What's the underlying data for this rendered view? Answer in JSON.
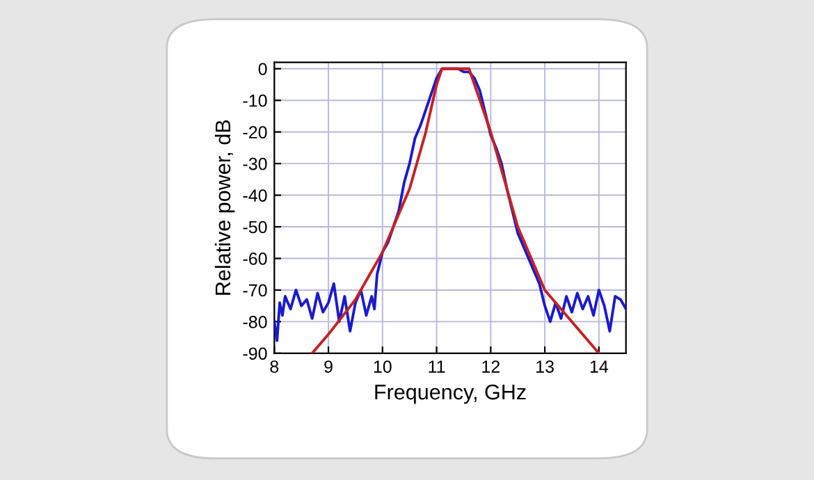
{
  "chart_data": {
    "type": "line",
    "xlabel": "Frequency, GHz",
    "ylabel": "Relative power, dB",
    "xlim": [
      8,
      14.5
    ],
    "xticks": [
      8,
      9,
      10,
      11,
      12,
      13,
      14
    ],
    "ylim": [
      -90,
      2
    ],
    "yticks": [
      -90,
      -80,
      -70,
      -60,
      -50,
      -40,
      -30,
      -20,
      -10,
      0
    ],
    "grid": true,
    "legend": false,
    "series": [
      {
        "color": "#1a1ad0",
        "x": [
          8.0,
          8.05,
          8.1,
          8.15,
          8.2,
          8.3,
          8.4,
          8.5,
          8.6,
          8.7,
          8.8,
          8.9,
          9.0,
          9.1,
          9.2,
          9.3,
          9.4,
          9.5,
          9.6,
          9.7,
          9.8,
          9.85,
          9.9,
          10.0,
          10.1,
          10.2,
          10.3,
          10.4,
          10.5,
          10.6,
          10.7,
          10.8,
          10.9,
          11.0,
          11.1,
          11.2,
          11.3,
          11.4,
          11.5,
          11.6,
          11.7,
          11.8,
          11.9,
          12.0,
          12.1,
          12.2,
          12.3,
          12.4,
          12.5,
          12.6,
          12.7,
          12.8,
          12.9,
          13.0,
          13.1,
          13.2,
          13.3,
          13.4,
          13.5,
          13.6,
          13.7,
          13.8,
          13.9,
          14.0,
          14.1,
          14.2,
          14.3,
          14.4,
          14.5
        ],
        "values": [
          -80,
          -86,
          -74,
          -78,
          -72,
          -76,
          -70,
          -75,
          -73,
          -79,
          -71,
          -77,
          -74,
          -68,
          -80,
          -72,
          -83,
          -74,
          -70,
          -78,
          -72,
          -76,
          -65,
          -58,
          -55,
          -50,
          -45,
          -36,
          -30,
          -22,
          -18,
          -13,
          -8,
          -3,
          0,
          0,
          0,
          0,
          -1,
          -1,
          -3,
          -7,
          -14,
          -21,
          -25,
          -30,
          -38,
          -45,
          -52,
          -56,
          -60,
          -64,
          -68,
          -75,
          -80,
          -74,
          -79,
          -72,
          -77,
          -71,
          -76,
          -72,
          -78,
          -70,
          -75,
          -83,
          -72,
          -73,
          -76
        ]
      },
      {
        "color": "#c82020",
        "x": [
          8.7,
          9.0,
          9.5,
          10.0,
          10.5,
          10.8,
          11.0,
          11.1,
          11.3,
          11.6,
          11.7,
          11.8,
          12.0,
          12.5,
          13.0,
          13.5,
          14.0
        ],
        "values": [
          -90,
          -84,
          -73,
          -58,
          -38,
          -20,
          -5,
          0,
          0,
          0,
          -5,
          -10,
          -20,
          -50,
          -70,
          -80,
          -90
        ]
      }
    ]
  }
}
